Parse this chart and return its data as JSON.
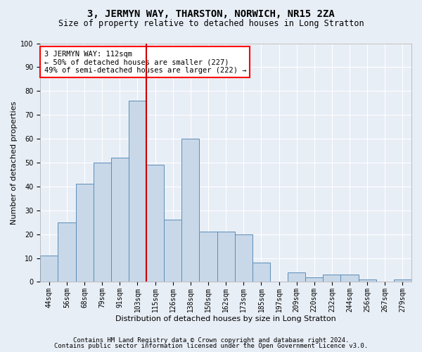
{
  "title": "3, JERMYN WAY, THARSTON, NORWICH, NR15 2ZA",
  "subtitle": "Size of property relative to detached houses in Long Stratton",
  "xlabel": "Distribution of detached houses by size in Long Stratton",
  "ylabel": "Number of detached properties",
  "footnote1": "Contains HM Land Registry data © Crown copyright and database right 2024.",
  "footnote2": "Contains public sector information licensed under the Open Government Licence v3.0.",
  "annotation_line1": "3 JERMYN WAY: 112sqm",
  "annotation_line2": "← 50% of detached houses are smaller (227)",
  "annotation_line3": "49% of semi-detached houses are larger (222) →",
  "bar_labels": [
    "44sqm",
    "56sqm",
    "68sqm",
    "79sqm",
    "91sqm",
    "103sqm",
    "115sqm",
    "126sqm",
    "138sqm",
    "150sqm",
    "162sqm",
    "173sqm",
    "185sqm",
    "197sqm",
    "209sqm",
    "220sqm",
    "232sqm",
    "244sqm",
    "256sqm",
    "267sqm",
    "279sqm"
  ],
  "bar_values": [
    11,
    25,
    41,
    50,
    52,
    76,
    49,
    26,
    60,
    21,
    21,
    20,
    8,
    0,
    4,
    2,
    3,
    3,
    1,
    0,
    1
  ],
  "bar_color": "#c8d8e8",
  "bar_edge_color": "#5b8db8",
  "vline_color": "#cc0000",
  "ylim": [
    0,
    100
  ],
  "yticks": [
    0,
    10,
    20,
    30,
    40,
    50,
    60,
    70,
    80,
    90,
    100
  ],
  "bg_color": "#e8eef6",
  "plot_bg_color": "#e8eef6",
  "grid_color": "#ffffff",
  "title_fontsize": 10,
  "subtitle_fontsize": 8.5,
  "xlabel_fontsize": 8,
  "ylabel_fontsize": 8,
  "tick_fontsize": 7,
  "annotation_fontsize": 7.5,
  "footnote_fontsize": 6.5
}
